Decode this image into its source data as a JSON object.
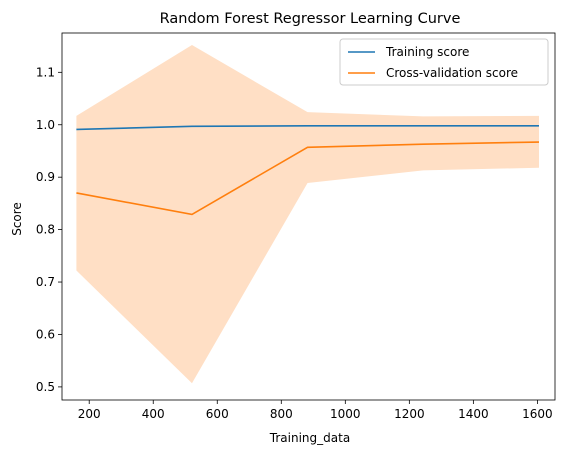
{
  "chart_data": {
    "type": "line",
    "title": "Random Forest Regressor Learning Curve",
    "xlabel": "Training_data",
    "ylabel": "Score",
    "xlim": [
      115,
      1655
    ],
    "ylim": [
      0.475,
      1.175
    ],
    "xticks": [
      200,
      400,
      600,
      800,
      1000,
      1200,
      1400,
      1600
    ],
    "yticks": [
      0.5,
      0.6,
      0.7,
      0.8,
      0.9,
      1.0,
      1.1
    ],
    "grid": false,
    "legend_position": "top-right",
    "x": [
      160,
      521,
      882,
      1243,
      1605
    ],
    "series": [
      {
        "name": "Training score",
        "color": "#1f77b4",
        "values": [
          0.991,
          0.997,
          0.998,
          0.998,
          0.998
        ],
        "band_lower": [
          0.988,
          0.996,
          0.997,
          0.997,
          0.997
        ],
        "band_upper": [
          0.994,
          0.998,
          0.999,
          0.999,
          0.999
        ],
        "band_color": "#1f77b4"
      },
      {
        "name": "Cross-validation score",
        "color": "#ff7f0e",
        "values": [
          0.87,
          0.829,
          0.957,
          0.963,
          0.967
        ],
        "band_lower": [
          0.722,
          0.507,
          0.889,
          0.913,
          0.918
        ],
        "band_upper": [
          1.017,
          1.152,
          1.024,
          1.016,
          1.017
        ],
        "band_color": "#ffdfc5"
      }
    ]
  }
}
